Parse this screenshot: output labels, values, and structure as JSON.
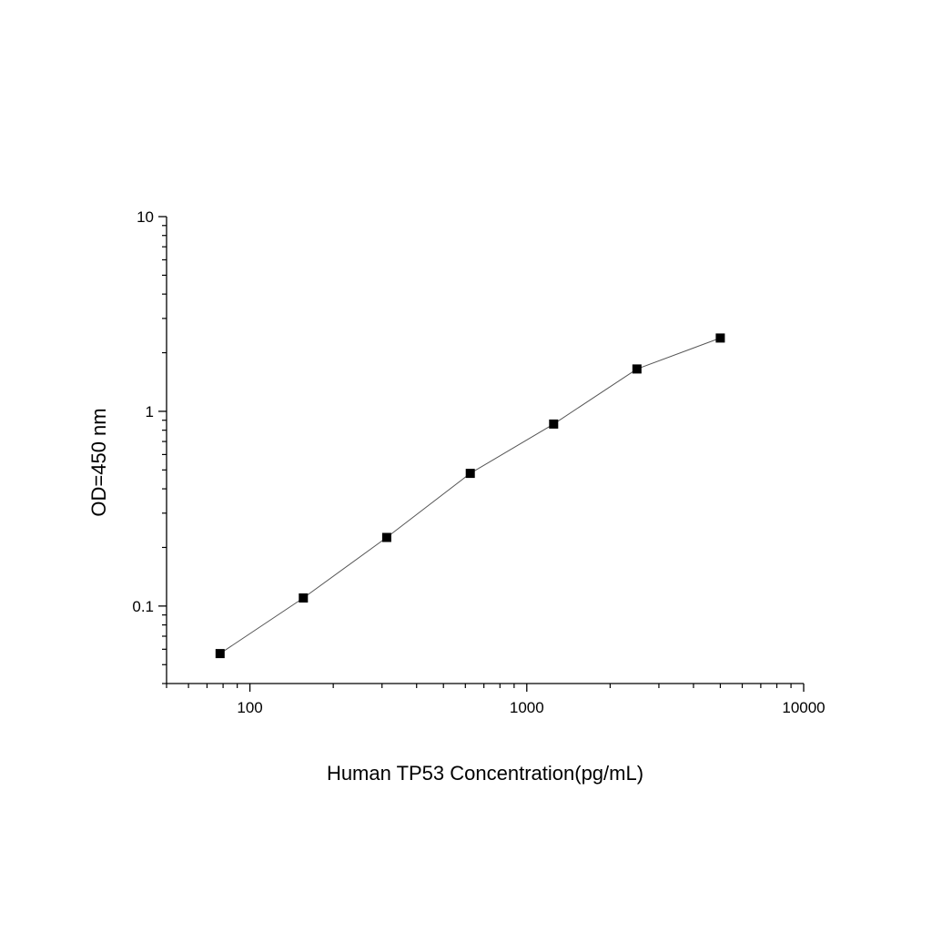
{
  "chart_data": {
    "type": "line",
    "xlabel": "Human TP53 Concentration(pg/mL)",
    "ylabel": "OD=450 nm",
    "x_scale": "log",
    "y_scale": "log",
    "xlim": [
      50,
      10000
    ],
    "ylim": [
      0.04,
      10
    ],
    "x_ticks": [
      {
        "value": 100,
        "label": "100"
      },
      {
        "value": 1000,
        "label": "1000"
      },
      {
        "value": 10000,
        "label": "10000"
      }
    ],
    "y_ticks": [
      {
        "value": 0.1,
        "label": "0.1"
      },
      {
        "value": 1,
        "label": "1"
      },
      {
        "value": 10,
        "label": "10"
      }
    ],
    "grid": false,
    "legend": "none",
    "marker": "square",
    "series": [
      {
        "points": [
          {
            "x": 78,
            "y": 0.057
          },
          {
            "x": 156,
            "y": 0.11
          },
          {
            "x": 312,
            "y": 0.225
          },
          {
            "x": 625,
            "y": 0.48
          },
          {
            "x": 1250,
            "y": 0.86
          },
          {
            "x": 2500,
            "y": 1.65
          },
          {
            "x": 5000,
            "y": 2.38
          }
        ]
      }
    ],
    "colors": {
      "line": "#555555",
      "marker": "#000000",
      "axis": "#000000"
    }
  }
}
